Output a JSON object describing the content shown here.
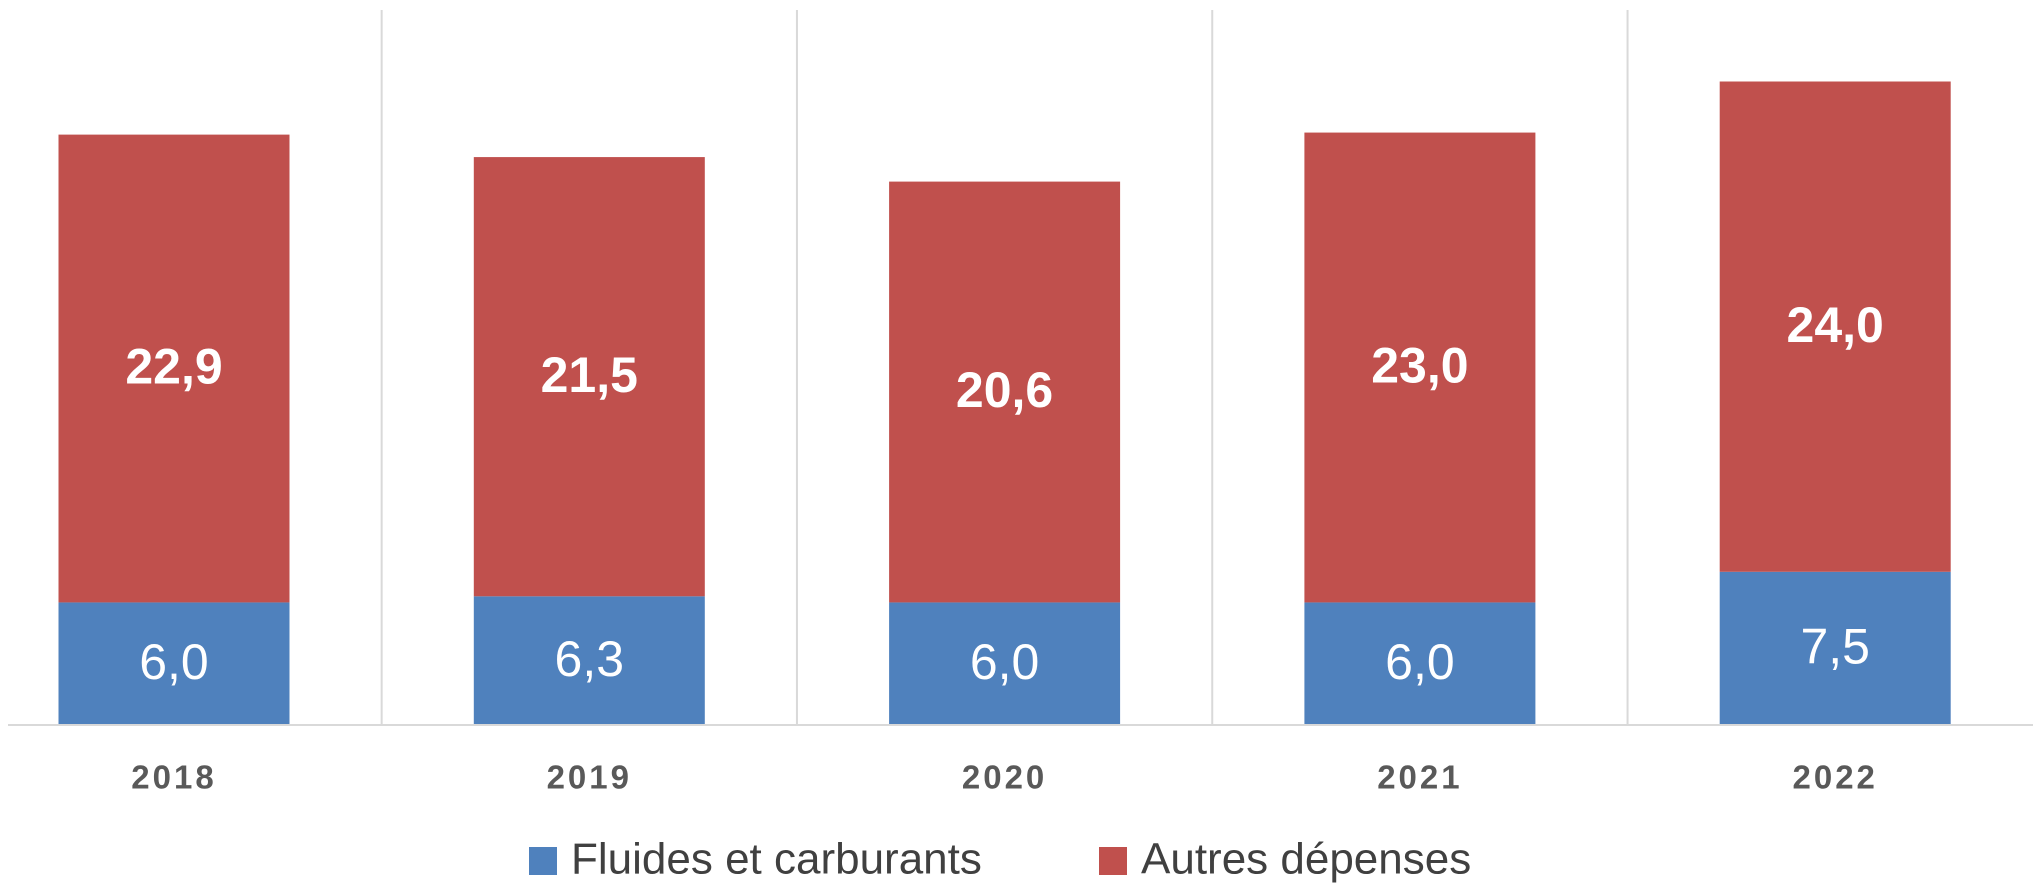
{
  "chart_data": {
    "type": "bar",
    "stacked": true,
    "categories": [
      "2018",
      "2019",
      "2020",
      "2021",
      "2022"
    ],
    "series": [
      {
        "name": "Fluides et carburants",
        "color": "#4f81bd",
        "values": [
          6.0,
          6.3,
          6.0,
          6.0,
          7.5
        ],
        "value_labels": [
          "6,0",
          "6,3",
          "6,0",
          "6,0",
          "7,5"
        ]
      },
      {
        "name": "Autres dépenses",
        "color": "#c0504d",
        "values": [
          22.9,
          21.5,
          20.6,
          23.0,
          24.0
        ],
        "value_labels": [
          "22,9",
          "21,5",
          "20,6",
          "23,0",
          "24,0"
        ]
      }
    ],
    "ylim": [
      0,
      35
    ]
  }
}
